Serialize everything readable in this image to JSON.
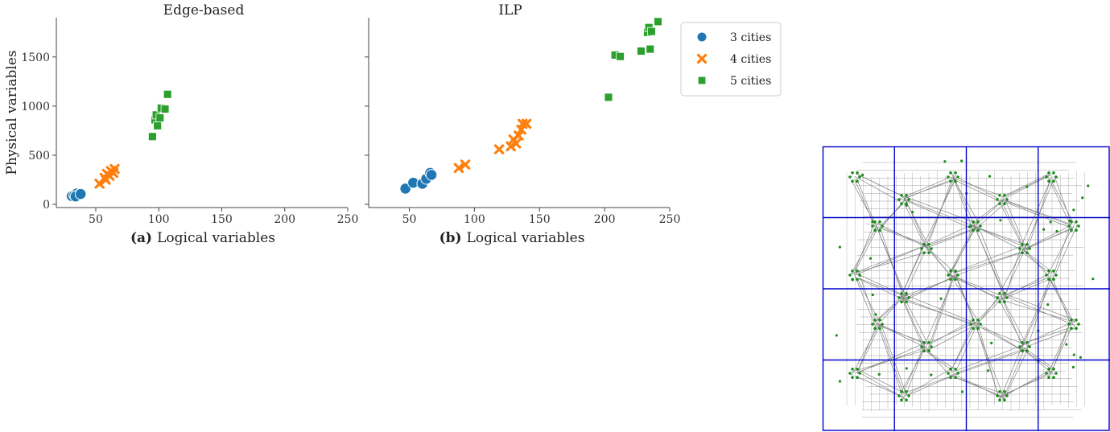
{
  "chart_data": [
    {
      "type": "scatter",
      "title": "Edge-based",
      "xlabel_prefix": "(a)",
      "xlabel": "Logical variables",
      "ylabel": "Physical variables",
      "xlim": [
        20,
        250
      ],
      "ylim": [
        0,
        1900
      ],
      "xticks": [
        50,
        100,
        150,
        200,
        250
      ],
      "yticks": [
        0,
        500,
        1000,
        1500
      ],
      "grid": false,
      "series": [
        {
          "name": "3 cities",
          "marker": "circle",
          "color": "#1f77b4",
          "points": [
            [
              31,
              85
            ],
            [
              33,
              95
            ],
            [
              35,
              110
            ],
            [
              36,
              90
            ],
            [
              37,
              100
            ],
            [
              34,
              80
            ],
            [
              38,
              105
            ]
          ]
        },
        {
          "name": "4 cities",
          "marker": "x",
          "color": "#ff7f0e",
          "points": [
            [
              53,
              210
            ],
            [
              57,
              270
            ],
            [
              59,
              310
            ],
            [
              61,
              290
            ],
            [
              62,
              340
            ],
            [
              64,
              320
            ],
            [
              65,
              360
            ],
            [
              58,
              250
            ]
          ]
        },
        {
          "name": "5 cities",
          "marker": "square",
          "color": "#2ca02c",
          "points": [
            [
              95,
              690
            ],
            [
              97,
              860
            ],
            [
              98,
              910
            ],
            [
              99,
              800
            ],
            [
              101,
              880
            ],
            [
              102,
              980
            ],
            [
              105,
              970
            ],
            [
              107,
              1120
            ]
          ]
        }
      ]
    },
    {
      "type": "scatter",
      "title": "ILP",
      "xlabel_prefix": "(b)",
      "xlabel": "Logical variables",
      "ylabel": "",
      "xlim": [
        20,
        250
      ],
      "ylim": [
        0,
        1900
      ],
      "xticks": [
        50,
        100,
        150,
        200,
        250
      ],
      "yticks": [
        0,
        500,
        1000,
        1500
      ],
      "grid": false,
      "series": [
        {
          "name": "3 cities",
          "marker": "circle",
          "color": "#1f77b4",
          "points": [
            [
              47,
              160
            ],
            [
              53,
              220
            ],
            [
              60,
              210
            ],
            [
              63,
              260
            ],
            [
              66,
              320
            ],
            [
              67,
              300
            ]
          ]
        },
        {
          "name": "4 cities",
          "marker": "x",
          "color": "#ff7f0e",
          "points": [
            [
              88,
              370
            ],
            [
              93,
              405
            ],
            [
              119,
              560
            ],
            [
              128,
              590
            ],
            [
              130,
              660
            ],
            [
              132,
              620
            ],
            [
              134,
              700
            ],
            [
              136,
              760
            ],
            [
              137,
              820
            ],
            [
              140,
              820
            ]
          ]
        },
        {
          "name": "5 cities",
          "marker": "square",
          "color": "#2ca02c",
          "points": [
            [
              203,
              1090
            ],
            [
              208,
              1520
            ],
            [
              212,
              1505
            ],
            [
              228,
              1560
            ],
            [
              233,
              1750
            ],
            [
              234,
              1800
            ],
            [
              235,
              1580
            ],
            [
              236,
              1760
            ],
            [
              241,
              1860
            ]
          ]
        }
      ]
    }
  ],
  "legend": {
    "placement": "right",
    "entries": [
      {
        "label": "3 cities",
        "marker": "circle",
        "color": "#1f77b4"
      },
      {
        "label": "4 cities",
        "marker": "x",
        "color": "#ff7f0e"
      },
      {
        "label": "5 cities",
        "marker": "square",
        "color": "#2ca02c"
      }
    ]
  },
  "grid_figure": {
    "rows": 4,
    "cols": 4,
    "partition_color": "#0000cc",
    "edge_color": "#777777",
    "node_color": "#1a8c1a"
  }
}
